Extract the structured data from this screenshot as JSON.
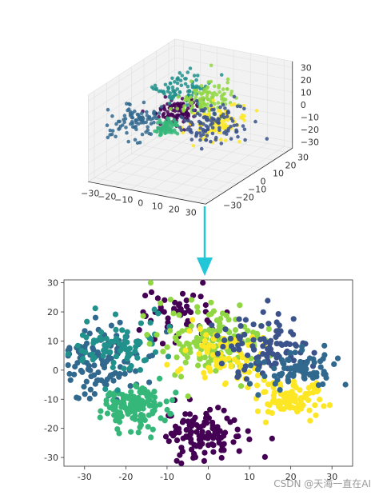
{
  "chart_data": [
    {
      "type": "scatter",
      "projection": "3d",
      "xlim": [
        -35,
        35
      ],
      "ylim": [
        -35,
        35
      ],
      "zlim": [
        -35,
        35
      ],
      "x_ticks": [
        "−30",
        "−20",
        "−10",
        "0",
        "10",
        "20",
        "30"
      ],
      "y_ticks": [
        "−30",
        "−20",
        "−10",
        "0",
        "10",
        "20",
        "30"
      ],
      "z_ticks": [
        "30",
        "20",
        "10",
        "0",
        "−10",
        "−20",
        "−30"
      ],
      "grid": true,
      "colormap": "viridis",
      "clusters": [
        {
          "x": -8,
          "y": 0,
          "z": 5,
          "spread": 5,
          "color": "#440154",
          "n": 110
        },
        {
          "x": -18,
          "y": -20,
          "z": 8,
          "spread": 7,
          "color": "#31688e",
          "n": 90
        },
        {
          "x": -12,
          "y": 10,
          "z": 18,
          "spread": 6,
          "color": "#21918c",
          "n": 80
        },
        {
          "x": -20,
          "y": 8,
          "z": -15,
          "spread": 3,
          "color": "#35b779",
          "n": 70
        },
        {
          "x": 5,
          "y": 5,
          "z": 15,
          "spread": 7,
          "color": "#90d743",
          "n": 110
        },
        {
          "x": 10,
          "y": 10,
          "z": -5,
          "spread": 6,
          "color": "#fde725",
          "n": 90
        },
        {
          "x": 15,
          "y": 0,
          "z": 0,
          "spread": 8,
          "color": "#3b528b",
          "n": 110
        }
      ]
    },
    {
      "type": "scatter",
      "xlim": [
        -35,
        35
      ],
      "ylim": [
        -33,
        31
      ],
      "x_ticks": [
        -30,
        -20,
        -10,
        0,
        10,
        20,
        30
      ],
      "y_ticks": [
        -30,
        -20,
        -10,
        0,
        10,
        20,
        30
      ],
      "colormap": "viridis",
      "clusters": [
        {
          "x": -2,
          "y": -22,
          "sx": 5,
          "sy": 4,
          "color": "#440154",
          "n": 120
        },
        {
          "x": -7,
          "y": 18,
          "sx": 5,
          "sy": 5,
          "color": "#440154",
          "n": 60
        },
        {
          "x": -25,
          "y": 2,
          "sx": 5,
          "sy": 6,
          "color": "#31688e",
          "n": 120
        },
        {
          "x": -18,
          "y": -12,
          "sx": 4,
          "sy": 4,
          "color": "#35b779",
          "n": 130
        },
        {
          "x": -22,
          "y": 8,
          "sx": 5,
          "sy": 5,
          "color": "#21918c",
          "n": 80
        },
        {
          "x": 0,
          "y": 10,
          "sx": 6,
          "sy": 6,
          "color": "#90d743",
          "n": 160
        },
        {
          "x": 5,
          "y": 5,
          "sx": 5,
          "sy": 5,
          "color": "#fde725",
          "n": 80
        },
        {
          "x": 20,
          "y": -10,
          "sx": 4,
          "sy": 3,
          "color": "#fde725",
          "n": 90
        },
        {
          "x": 14,
          "y": 8,
          "sx": 6,
          "sy": 5,
          "color": "#3b528b",
          "n": 100
        },
        {
          "x": 22,
          "y": 0,
          "sx": 5,
          "sy": 4,
          "color": "#31688e",
          "n": 80
        }
      ]
    }
  ],
  "watermark": "CSDN @天海一直在AI",
  "arrow_color": "#21c7d7"
}
